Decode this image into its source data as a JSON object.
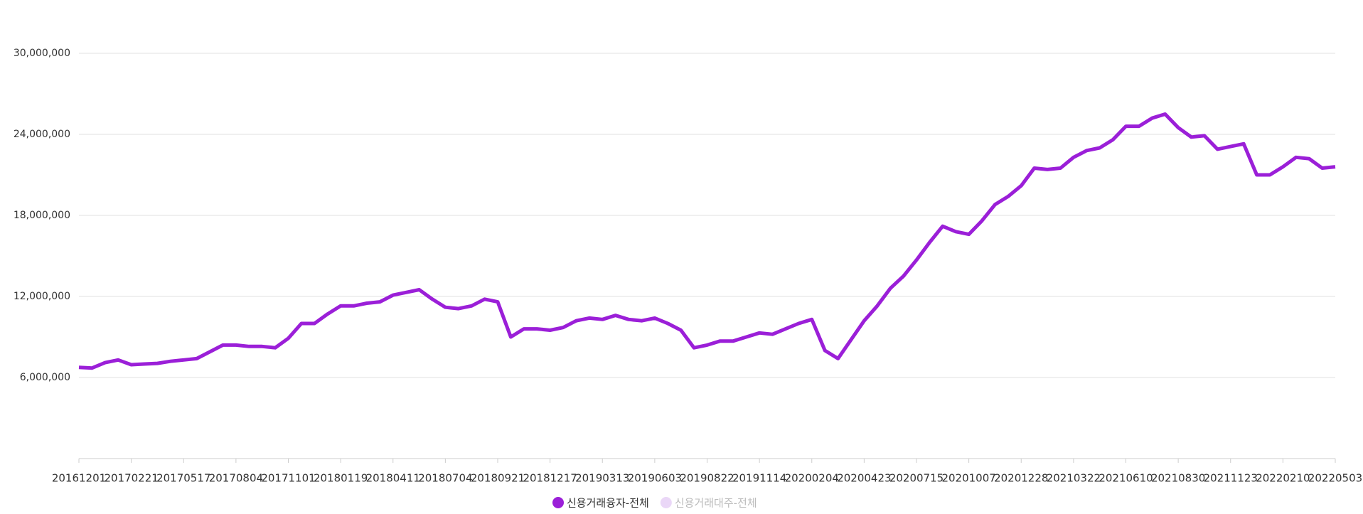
{
  "chart_data": {
    "type": "line",
    "categories": [
      "20161201",
      null,
      null,
      null,
      "20170221",
      null,
      null,
      null,
      "20170517",
      null,
      null,
      null,
      "20170804",
      null,
      null,
      null,
      "20171101",
      null,
      null,
      null,
      "20180119",
      null,
      null,
      null,
      "20180411",
      null,
      null,
      null,
      "20180704",
      null,
      null,
      null,
      "20180921",
      null,
      null,
      null,
      "20181217",
      null,
      null,
      null,
      "20190313",
      null,
      null,
      null,
      "20190603",
      null,
      null,
      null,
      "20190822",
      null,
      null,
      null,
      "20191114",
      null,
      null,
      null,
      "20200204",
      null,
      null,
      null,
      "20200423",
      null,
      null,
      null,
      "20200715",
      null,
      null,
      null,
      "20201007",
      null,
      null,
      null,
      "20201228",
      null,
      null,
      null,
      "20210322",
      null,
      null,
      null,
      "20210610",
      null,
      null,
      null,
      "20210830",
      null,
      null,
      null,
      "20211123",
      null,
      null,
      null,
      "20220210",
      null,
      null,
      null,
      "20220503"
    ],
    "series": [
      {
        "name": "신용거래융자-전체",
        "color": "#9b1fd8",
        "values": [
          6750000,
          6700000,
          7100000,
          7300000,
          6950000,
          7000000,
          7050000,
          7200000,
          7300000,
          7400000,
          7900000,
          8400000,
          8400000,
          8300000,
          8300000,
          8200000,
          8900000,
          10000000,
          10000000,
          10700000,
          11300000,
          11300000,
          11500000,
          11600000,
          12100000,
          12300000,
          12500000,
          11800000,
          11200000,
          11100000,
          11300000,
          11800000,
          11600000,
          9000000,
          9600000,
          9600000,
          9500000,
          9700000,
          10200000,
          10400000,
          10300000,
          10600000,
          10300000,
          10200000,
          10400000,
          10000000,
          9500000,
          8200000,
          8400000,
          8700000,
          8700000,
          9000000,
          9300000,
          9200000,
          9600000,
          10000000,
          10300000,
          8000000,
          7400000,
          8800000,
          10200000,
          11300000,
          12600000,
          13500000,
          14700000,
          16000000,
          17200000,
          16800000,
          16600000,
          17600000,
          18800000,
          19400000,
          20200000,
          21500000,
          21400000,
          21500000,
          22300000,
          22800000,
          23000000,
          23600000,
          24600000,
          24600000,
          25200000,
          25500000,
          24500000,
          23800000,
          23900000,
          22900000,
          23100000,
          23300000,
          21000000,
          21000000,
          21600000,
          22300000,
          22200000,
          21500000,
          21600000
        ]
      },
      {
        "name": "신용거래대주-전체",
        "color": "#ead7f7",
        "visible": false
      }
    ],
    "ylim": [
      0,
      30000000
    ],
    "yticks": [
      {
        "value": 6000000,
        "label": "6,000,000"
      },
      {
        "value": 12000000,
        "label": "12,000,000"
      },
      {
        "value": 18000000,
        "label": "18,000,000"
      },
      {
        "value": 24000000,
        "label": "24,000,000"
      },
      {
        "value": 30000000,
        "label": "30,000,000"
      }
    ],
    "grid": true
  }
}
